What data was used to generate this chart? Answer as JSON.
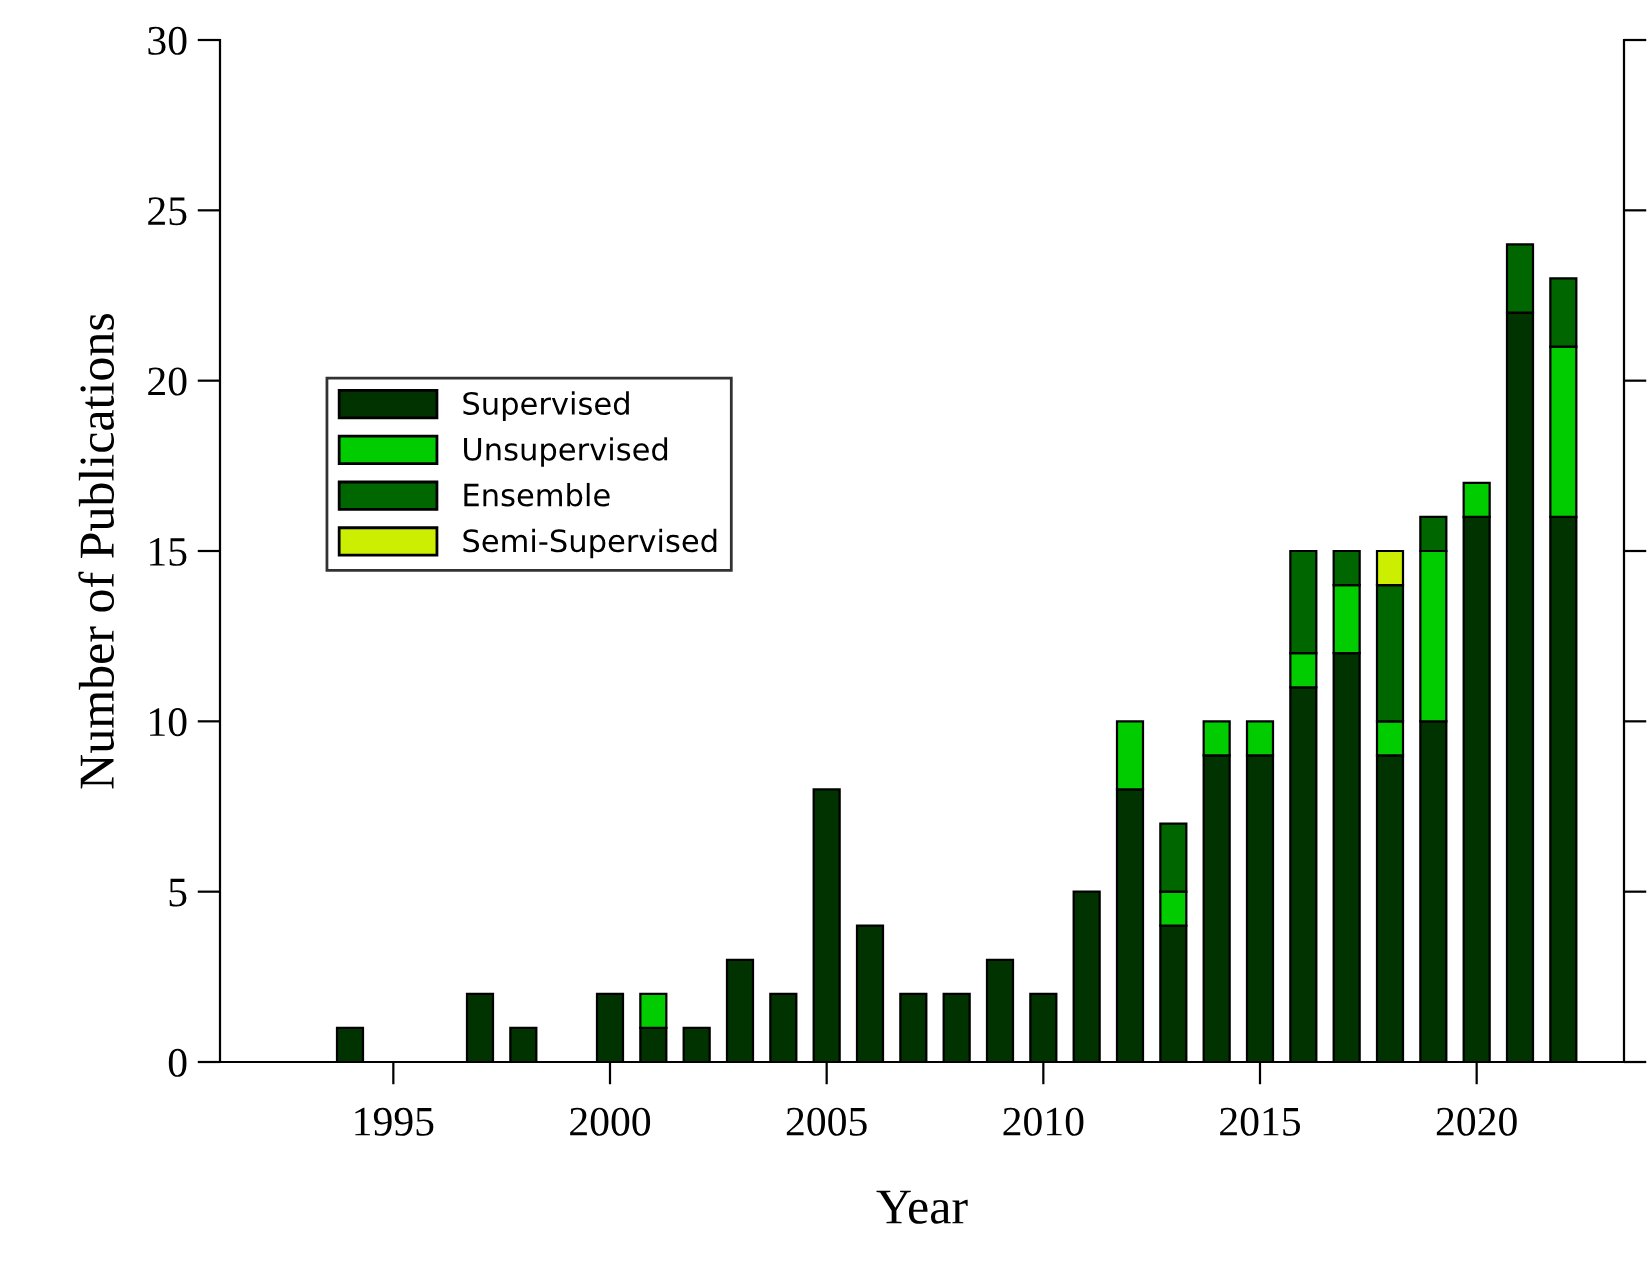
{
  "chart_data": {
    "type": "bar",
    "stacked": true,
    "xlabel": "Year",
    "ylabel": "Number of Publications",
    "x": [
      1994,
      1997,
      1998,
      2000,
      2001,
      2002,
      2003,
      2004,
      2005,
      2006,
      2007,
      2008,
      2009,
      2010,
      2011,
      2012,
      2013,
      2014,
      2015,
      2016,
      2017,
      2018,
      2019,
      2020,
      2021,
      2022
    ],
    "series": [
      {
        "name": "Supervised",
        "color": "#003300",
        "values": [
          1,
          2,
          1,
          2,
          1,
          1,
          3,
          2,
          8,
          4,
          2,
          2,
          3,
          2,
          5,
          8,
          4,
          9,
          9,
          11,
          12,
          9,
          10,
          16,
          22,
          16
        ]
      },
      {
        "name": "Unsupervised",
        "color": "#00cc00",
        "values": [
          null,
          null,
          null,
          null,
          1,
          null,
          null,
          null,
          null,
          null,
          null,
          null,
          null,
          null,
          null,
          2,
          1,
          1,
          1,
          1,
          2,
          1,
          5,
          1,
          null,
          5
        ]
      },
      {
        "name": "Ensemble",
        "color": "#006600",
        "values": [
          null,
          null,
          null,
          null,
          null,
          null,
          null,
          null,
          null,
          null,
          null,
          null,
          null,
          null,
          null,
          null,
          2,
          null,
          null,
          3,
          1,
          4,
          1,
          null,
          2,
          2
        ]
      },
      {
        "name": "Semi-Supervised",
        "color": "#ccee00",
        "values": [
          null,
          null,
          null,
          null,
          null,
          null,
          null,
          null,
          null,
          null,
          null,
          null,
          null,
          null,
          null,
          null,
          null,
          null,
          null,
          null,
          null,
          1,
          null,
          null,
          null,
          null
        ]
      }
    ],
    "xlim": [
      1991,
      2023.4
    ],
    "xticks": [
      1995,
      2000,
      2005,
      2010,
      2015,
      2020
    ],
    "ylim": [
      0,
      30
    ],
    "yticks": [
      0,
      5,
      10,
      15,
      20,
      25,
      30
    ],
    "tick_labels": true,
    "grid": false,
    "legend": "center left"
  }
}
